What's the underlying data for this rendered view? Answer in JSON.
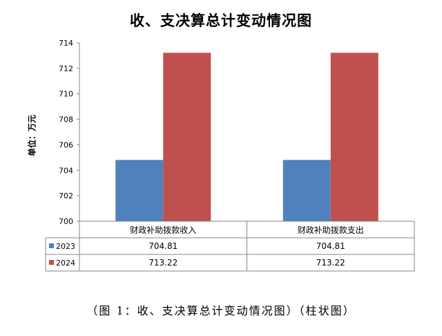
{
  "chart_data": {
    "type": "bar",
    "title": "收、支决算总计变动情况图",
    "ylabel": "单位：万元",
    "xlabel": "",
    "categories": [
      "财政补助拨款收入",
      "财政补助拨款支出"
    ],
    "series": [
      {
        "name": "2023",
        "values": [
          704.81,
          704.81
        ],
        "color": "#4F81BD"
      },
      {
        "name": "2024",
        "values": [
          713.22,
          713.22
        ],
        "color": "#C0504D"
      }
    ],
    "ylim": [
      700,
      714
    ],
    "yticks": [
      700,
      702,
      704,
      706,
      708,
      710,
      712,
      714
    ],
    "data_table": true,
    "grid": false
  },
  "caption": "（图 1：收、支决算总计变动情况图）（柱状图）"
}
